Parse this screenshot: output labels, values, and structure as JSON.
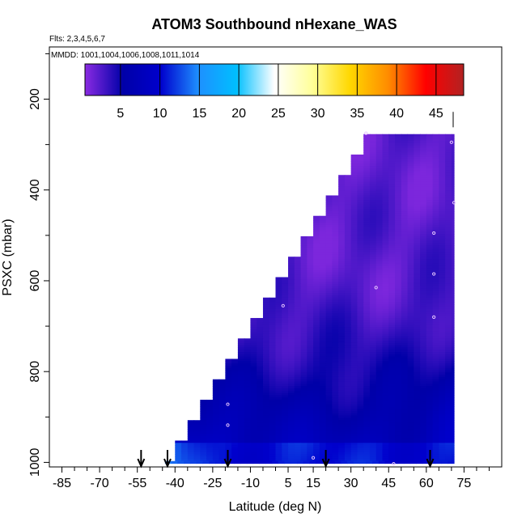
{
  "chart_data": {
    "type": "heatmap",
    "title": "ATOM3 Southbound nHexane_WAS",
    "subtitle_flights": "Flts: 2,3,4,5,6,7",
    "subtitle_dates": "MMDD: 1001,1004,1006,1008,1011,1014",
    "xlabel": "Latitude (deg N)",
    "ylabel": "PSXC (mbar)",
    "xlim": [
      -90,
      90
    ],
    "ylim": [
      1010,
      85
    ],
    "x_ticks": [
      -85,
      -70,
      -55,
      -40,
      -25,
      -10,
      5,
      15,
      30,
      45,
      60,
      75
    ],
    "x_tick_labels": [
      "-85",
      "-70",
      "-55",
      "-40",
      "-25",
      "-10",
      "5",
      "15",
      "30",
      "45",
      "60",
      "75"
    ],
    "y_ticks": [
      200,
      400,
      600,
      800,
      1000
    ],
    "y_tick_labels": [
      "200",
      "400",
      "600",
      "800",
      "1000"
    ],
    "colorbar": {
      "min": 0.5,
      "max": 48.5,
      "ticks": [
        5,
        10,
        15,
        20,
        25,
        30,
        35,
        40,
        45
      ],
      "tick_labels": [
        "5",
        "10",
        "15",
        "20",
        "25",
        "30",
        "35",
        "40",
        "45"
      ],
      "stops": [
        "#8a2be2",
        "#0000a8",
        "#0000cd",
        "#1e90ff",
        "#00bfff",
        "#ffffff",
        "#ffff99",
        "#ffd700",
        "#ff8c00",
        "#ff0000",
        "#b22222"
      ]
    },
    "field": {
      "lat_max": 71,
      "top_left_edge": [
        [
          1000,
          -44
        ],
        [
          955,
          -40
        ],
        [
          910,
          -35
        ],
        [
          865,
          -30
        ],
        [
          820,
          -25
        ],
        [
          775,
          -20
        ],
        [
          730,
          -15
        ],
        [
          685,
          -10
        ],
        [
          640,
          -5
        ],
        [
          595,
          0
        ],
        [
          550,
          5
        ],
        [
          505,
          10
        ],
        [
          460,
          15
        ],
        [
          415,
          20
        ],
        [
          370,
          25
        ],
        [
          325,
          30
        ],
        [
          280,
          35
        ],
        [
          240,
          71
        ]
      ],
      "note_values": "mostly 1-5 (purple) aloft, 6-14 (blue) near surface"
    },
    "samples": [
      {
        "lat": 36,
        "p": 275
      },
      {
        "lat": 70,
        "p": 295
      },
      {
        "lat": 71,
        "p": 428
      },
      {
        "lat": 63,
        "p": 495
      },
      {
        "lat": 63,
        "p": 585
      },
      {
        "lat": 40,
        "p": 615
      },
      {
        "lat": 3,
        "p": 655
      },
      {
        "lat": 63,
        "p": 680
      },
      {
        "lat": -19,
        "p": 872
      },
      {
        "lat": -19,
        "p": 918
      },
      {
        "lat": 15,
        "p": 990
      },
      {
        "lat": 47,
        "p": 1003
      }
    ],
    "arrows_lat": [
      -53.5,
      -43,
      -19,
      20,
      61.5
    ]
  }
}
